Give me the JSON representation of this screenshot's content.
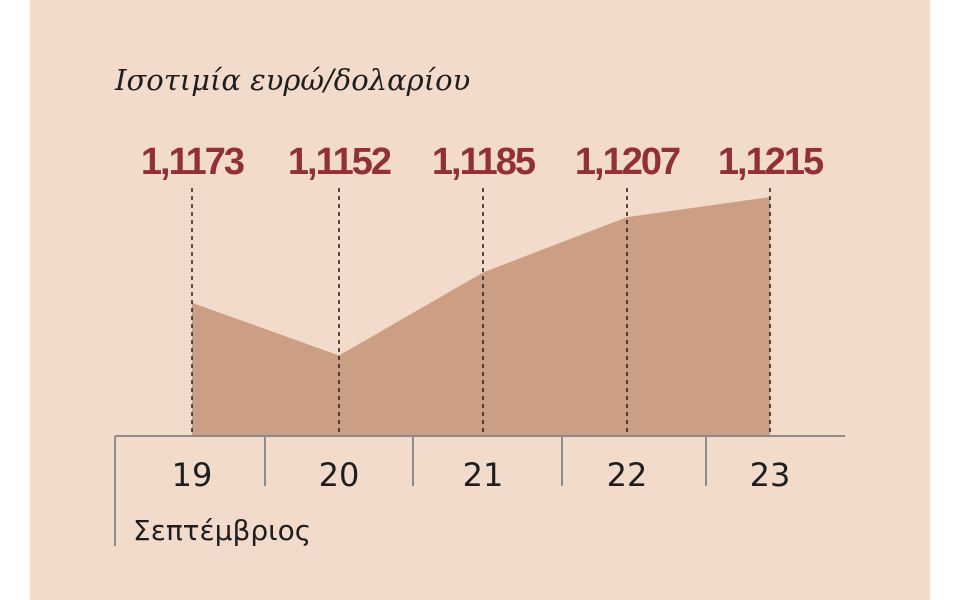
{
  "chart_data": {
    "type": "area",
    "title": "Ισοτιμία ευρώ/δολαρίου",
    "categories": [
      "19",
      "20",
      "21",
      "22",
      "23"
    ],
    "values": [
      1.1173,
      1.1152,
      1.1185,
      1.1207,
      1.1215
    ],
    "data_labels": [
      "1,1173",
      "1,1152",
      "1,1185",
      "1,1207",
      "1,1215"
    ],
    "xlabel": "Σεπτέμβριος",
    "ylabel": "",
    "ylim": [
      1.112,
      1.1215
    ],
    "grid": false,
    "colors": {
      "background": "#f2dbcb",
      "area": "#cc9f85",
      "labels": "#923038",
      "axis": "#8c8c8c"
    }
  }
}
